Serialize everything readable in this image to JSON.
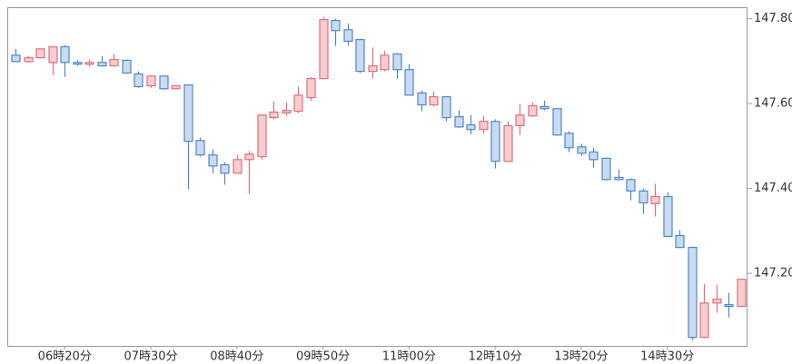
{
  "chart_data": {
    "type": "candlestick",
    "categories": [
      null,
      null,
      null,
      null,
      "06時20分",
      null,
      null,
      null,
      null,
      null,
      null,
      "07時30分",
      null,
      null,
      null,
      null,
      null,
      null,
      "08時40分",
      null,
      null,
      null,
      null,
      null,
      null,
      "09時50分",
      null,
      null,
      null,
      null,
      null,
      null,
      "11時00分",
      null,
      null,
      null,
      null,
      null,
      null,
      "12時10分",
      null,
      null,
      null,
      null,
      null,
      null,
      "13時20分",
      null,
      null,
      null,
      null,
      null,
      null,
      "14時30分",
      null,
      null,
      null,
      null,
      null,
      null
    ],
    "open": [
      147.714,
      147.699,
      147.708,
      147.697,
      147.734,
      147.697,
      147.693,
      147.697,
      147.689,
      147.702,
      147.67,
      147.642,
      147.665,
      147.635,
      147.644,
      147.513,
      147.479,
      147.456,
      147.436,
      147.468,
      147.475,
      147.567,
      147.578,
      147.582,
      147.614,
      147.659,
      147.796,
      147.774,
      147.751,
      147.676,
      147.68,
      147.717,
      147.68,
      147.625,
      147.597,
      147.616,
      147.569,
      147.55,
      147.539,
      147.558,
      147.464,
      147.548,
      147.571,
      147.593,
      147.588,
      147.53,
      147.498,
      147.486,
      147.471,
      147.426,
      147.421,
      147.394,
      147.364,
      147.381,
      147.289,
      147.261,
      147.049,
      147.13,
      147.126,
      147.122
    ],
    "high": [
      147.729,
      147.712,
      147.729,
      147.734,
      147.738,
      147.702,
      147.702,
      147.712,
      147.717,
      147.704,
      147.676,
      147.665,
      147.665,
      147.642,
      147.646,
      147.52,
      147.492,
      147.462,
      147.479,
      147.488,
      147.575,
      147.605,
      147.603,
      147.64,
      147.663,
      147.804,
      147.8,
      147.789,
      147.751,
      147.732,
      147.725,
      147.719,
      147.693,
      147.631,
      147.629,
      147.618,
      147.584,
      147.573,
      147.571,
      147.563,
      147.558,
      147.599,
      147.603,
      147.607,
      147.588,
      147.535,
      147.505,
      147.496,
      147.473,
      147.445,
      147.424,
      147.4,
      147.411,
      147.391,
      147.302,
      147.263,
      147.175,
      147.173,
      147.154,
      147.188
    ],
    "low": [
      147.699,
      147.697,
      147.708,
      147.667,
      147.663,
      147.689,
      147.687,
      147.687,
      147.687,
      147.67,
      147.637,
      147.637,
      147.633,
      147.635,
      147.398,
      147.475,
      147.436,
      147.409,
      147.436,
      147.387,
      147.468,
      147.563,
      147.571,
      147.578,
      147.607,
      147.657,
      147.736,
      147.736,
      147.672,
      147.659,
      147.676,
      147.659,
      147.62,
      147.582,
      147.593,
      147.558,
      147.543,
      147.528,
      147.53,
      147.447,
      147.462,
      147.526,
      147.569,
      147.584,
      147.524,
      147.486,
      147.477,
      147.449,
      147.419,
      147.419,
      147.372,
      147.34,
      147.334,
      147.285,
      147.259,
      147.043,
      147.047,
      147.107,
      147.096,
      147.122
    ],
    "close": [
      147.699,
      147.708,
      147.729,
      147.734,
      147.697,
      147.693,
      147.697,
      147.689,
      147.704,
      147.672,
      147.64,
      147.665,
      147.635,
      147.642,
      147.511,
      147.479,
      147.453,
      147.436,
      147.468,
      147.481,
      147.573,
      147.58,
      147.584,
      147.62,
      147.659,
      147.798,
      147.772,
      147.747,
      147.676,
      147.689,
      147.714,
      147.68,
      147.62,
      147.597,
      147.616,
      147.567,
      147.545,
      147.539,
      147.558,
      147.464,
      147.548,
      147.573,
      147.595,
      147.588,
      147.526,
      147.496,
      147.483,
      147.468,
      147.421,
      147.421,
      147.394,
      147.366,
      147.381,
      147.287,
      147.261,
      147.049,
      147.13,
      147.139,
      147.122,
      147.186
    ],
    "up_color": "#e0707a",
    "up_fill": "#f6cdd0",
    "down_color": "#4f86cc",
    "down_fill": "#c9dbf0",
    "ylim": [
      147.028,
      147.826
    ],
    "yticks": [
      {
        "value": 147.2,
        "label": "147.20"
      },
      {
        "value": 147.4,
        "label": "147.40"
      },
      {
        "value": 147.6,
        "label": "147.60"
      },
      {
        "value": 147.8,
        "label": "147.80"
      }
    ],
    "grid": false
  }
}
